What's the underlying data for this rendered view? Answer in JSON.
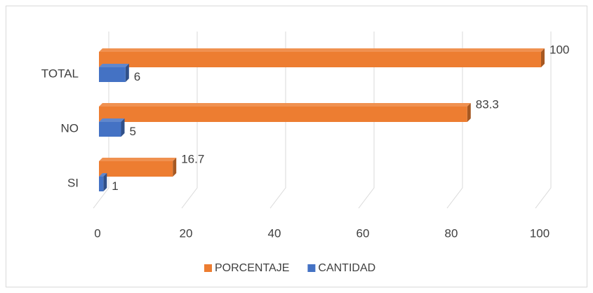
{
  "chart_data": {
    "type": "bar3d_horizontal",
    "categories": [
      "SI",
      "NO",
      "TOTAL"
    ],
    "series": [
      {
        "name": "PORCENTAJE",
        "color": "#ed7d31",
        "values": [
          16.7,
          83.3,
          100
        ]
      },
      {
        "name": "CANTIDAD",
        "color": "#4472c4",
        "values": [
          1,
          5,
          6
        ]
      }
    ],
    "xlim": [
      0,
      100
    ],
    "xticks": [
      0,
      20,
      40,
      60,
      80,
      100
    ],
    "grid": true,
    "legend": "bottom"
  }
}
